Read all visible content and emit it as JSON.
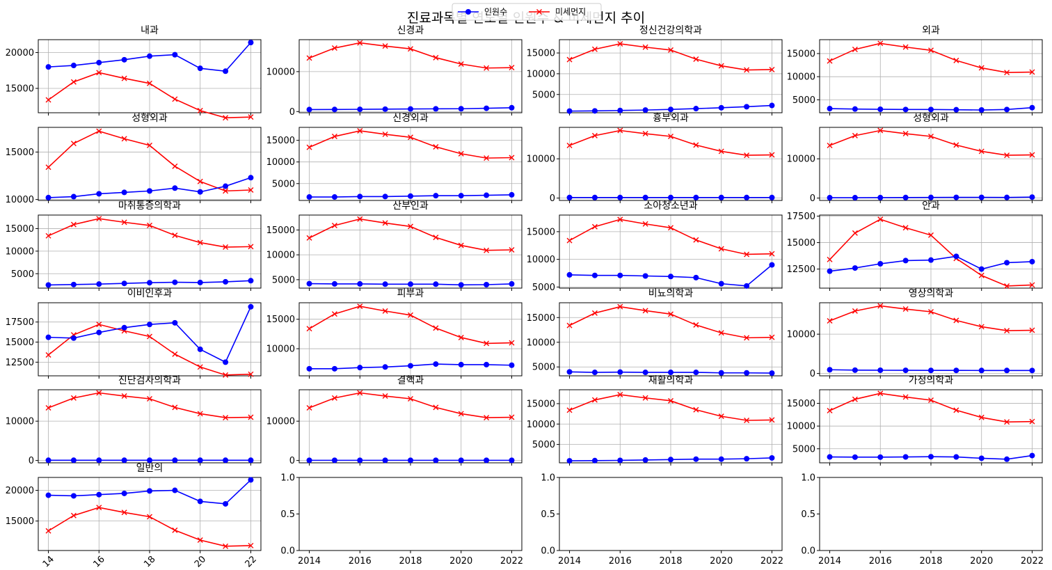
{
  "chart_data": {
    "type": "line",
    "title": "진료과목별 연도별 인원수 & 미세먼지 추이",
    "legend": {
      "placement": "top-center",
      "entries": [
        "인원수",
        "미세먼지"
      ]
    },
    "series_styles": [
      {
        "name": "인원수",
        "color": "#0000ff",
        "marker": "circle"
      },
      {
        "name": "미세먼지",
        "color": "#ff0000",
        "marker": "x"
      }
    ],
    "x": [
      2014,
      2015,
      2016,
      2017,
      2018,
      2019,
      2020,
      2021,
      2022
    ],
    "dust": [
      13400,
      15900,
      17200,
      16400,
      15700,
      13500,
      11900,
      10900,
      11000
    ],
    "grid": true,
    "panels": [
      {
        "title": "내과",
        "ylim": [
          11600,
          21800
        ],
        "yticks": [
          15000,
          20000
        ],
        "values": [
          18000,
          18200,
          18600,
          19000,
          19500,
          19700,
          17800,
          17400,
          21400
        ]
      },
      {
        "title": "신경과",
        "ylim": [
          -300,
          18000
        ],
        "yticks": [
          0,
          10000
        ],
        "values": [
          500,
          520,
          560,
          600,
          640,
          680,
          700,
          820,
          960
        ]
      },
      {
        "title": "정신건강의학과",
        "ylim": [
          600,
          18200
        ],
        "yticks": [
          5000,
          10000,
          15000
        ],
        "values": [
          1000,
          1050,
          1150,
          1250,
          1400,
          1600,
          1800,
          2050,
          2350
        ]
      },
      {
        "title": "외과",
        "ylim": [
          2200,
          18000
        ],
        "yticks": [
          5000,
          10000,
          15000
        ],
        "values": [
          3100,
          3000,
          2950,
          2900,
          2900,
          2850,
          2800,
          2900,
          3300
        ]
      },
      {
        "title": "성형외과",
        "ylim": [
          9900,
          17600
        ],
        "yticks": [
          10000,
          15000
        ],
        "values": [
          10200,
          10300,
          10600,
          10750,
          10900,
          11200,
          10800,
          11400,
          12300
        ]
      },
      {
        "title": "신경외과",
        "ylim": [
          1100,
          18000
        ],
        "yticks": [
          5000,
          10000,
          15000
        ],
        "values": [
          1900,
          1900,
          2000,
          2000,
          2100,
          2200,
          2200,
          2300,
          2400
        ]
      },
      {
        "title": "흉부외과",
        "ylim": [
          -600,
          18000
        ],
        "yticks": [
          0,
          10000
        ],
        "values": [
          150,
          150,
          150,
          150,
          150,
          150,
          150,
          150,
          150
        ]
      },
      {
        "title": "성형외과",
        "ylim": [
          -600,
          18000
        ],
        "yticks": [
          0,
          10000
        ],
        "values": [
          100,
          100,
          120,
          150,
          170,
          180,
          180,
          170,
          250
        ]
      },
      {
        "title": "마취통증의학과",
        "ylim": [
          1800,
          18000
        ],
        "yticks": [
          5000,
          10000,
          15000
        ],
        "values": [
          2500,
          2600,
          2700,
          2850,
          3000,
          3100,
          3050,
          3200,
          3450
        ]
      },
      {
        "title": "산부인과",
        "ylim": [
          3300,
          18000
        ],
        "yticks": [
          5000,
          10000,
          15000
        ],
        "values": [
          4200,
          4150,
          4150,
          4100,
          4100,
          4100,
          3950,
          4000,
          4150
        ]
      },
      {
        "title": "소아청소년과",
        "ylim": [
          4800,
          18000
        ],
        "yticks": [
          5000,
          10000,
          15000
        ],
        "values": [
          7200,
          7100,
          7100,
          7000,
          6900,
          6700,
          5600,
          5200,
          9000
        ]
      },
      {
        "title": "안과",
        "ylim": [
          10700,
          17600
        ],
        "yticks": [
          12500,
          15000,
          17500
        ],
        "values": [
          12300,
          12600,
          13000,
          13300,
          13350,
          13700,
          12500,
          13100,
          13200
        ]
      },
      {
        "title": "이비인후과",
        "ylim": [
          10800,
          19900
        ],
        "yticks": [
          12500,
          15000,
          17500
        ],
        "values": [
          15600,
          15500,
          16200,
          16800,
          17200,
          17400,
          14100,
          12500,
          19400
        ]
      },
      {
        "title": "피부과",
        "ylim": [
          5400,
          17800
        ],
        "yticks": [
          10000,
          15000
        ],
        "values": [
          6600,
          6600,
          6800,
          6900,
          7100,
          7400,
          7300,
          7300,
          7200
        ]
      },
      {
        "title": "비뇨의학과",
        "ylim": [
          3200,
          18000
        ],
        "yticks": [
          5000,
          10000,
          15000
        ],
        "values": [
          4000,
          3900,
          3950,
          3900,
          3900,
          3900,
          3800,
          3800,
          3750
        ]
      },
      {
        "title": "영상의학과",
        "ylim": [
          -600,
          18000
        ],
        "yticks": [
          0,
          10000
        ],
        "values": [
          950,
          850,
          820,
          800,
          780,
          780,
          770,
          770,
          760
        ]
      },
      {
        "title": "진단검사의학과",
        "ylim": [
          -600,
          18000
        ],
        "yticks": [
          0,
          10000
        ],
        "values": [
          60,
          60,
          60,
          60,
          60,
          60,
          60,
          60,
          60
        ]
      },
      {
        "title": "결핵과",
        "ylim": [
          -600,
          18000
        ],
        "yticks": [
          0,
          10000
        ],
        "values": [
          40,
          40,
          40,
          40,
          40,
          40,
          40,
          40,
          40
        ]
      },
      {
        "title": "재활의학과",
        "ylim": [
          500,
          18400
        ],
        "yticks": [
          5000,
          10000,
          15000
        ],
        "values": [
          1000,
          1050,
          1100,
          1200,
          1300,
          1400,
          1400,
          1500,
          1700
        ]
      },
      {
        "title": "가정의학과",
        "ylim": [
          1900,
          18000
        ],
        "yticks": [
          5000,
          10000,
          15000
        ],
        "values": [
          3200,
          3150,
          3150,
          3200,
          3250,
          3200,
          2900,
          2700,
          3500
        ]
      },
      {
        "title": "일반의",
        "ylim": [
          10200,
          22100
        ],
        "yticks": [
          15000,
          20000
        ],
        "values": [
          19200,
          19100,
          19300,
          19500,
          19900,
          20000,
          18200,
          17800,
          21700
        ]
      },
      {
        "title": "",
        "ylim": [
          0,
          1
        ],
        "yticks": [
          0.0,
          0.5,
          1.0
        ],
        "values": []
      },
      {
        "title": "",
        "ylim": [
          0,
          1
        ],
        "yticks": [
          0.0,
          0.5,
          1.0
        ],
        "values": []
      },
      {
        "title": "",
        "ylim": [
          0,
          1
        ],
        "yticks": [
          0.0,
          0.5,
          1.0
        ],
        "values": []
      }
    ],
    "xticks_rotated": [
      "14",
      "16",
      "18",
      "20",
      "22"
    ],
    "xticks_full": [
      "2014",
      "2016",
      "2018",
      "2020",
      "2022"
    ],
    "ytick_labels_empty": [
      "0.0",
      "0.5",
      "1.0"
    ]
  }
}
